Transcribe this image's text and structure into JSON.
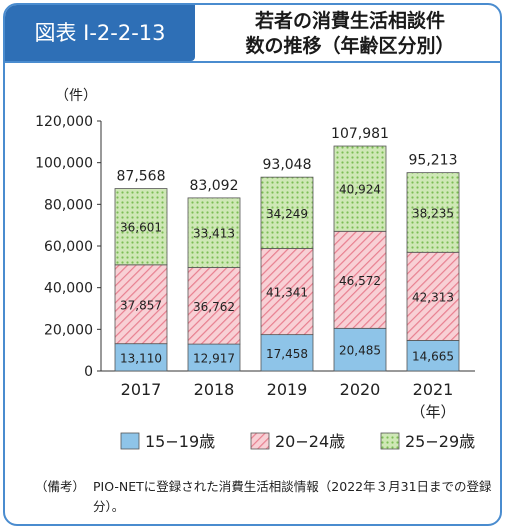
{
  "figure_label": "図表 I-2-2-13",
  "title_line1": "若者の消費生活相談件",
  "title_line2": "数の推移（年齢区分別）",
  "note_label": "（備考）",
  "note_text": "PIO-NETに登録された消費生活相談情報（2022年３月31日までの登録分）。",
  "colors": {
    "frame": "#4a8ccf",
    "header": "#2e6fb6",
    "s1": "#8ec4e8",
    "s2": "#f4b6bf",
    "s3": "#c5e3a8"
  },
  "chart_data": {
    "type": "bar",
    "stacked": true,
    "ylabel": "（件）",
    "xlabel": "（年）",
    "ylim": [
      0,
      120000
    ],
    "yticks": [
      "0",
      "20,000",
      "40,000",
      "60,000",
      "80,000",
      "100,000",
      "120,000"
    ],
    "categories": [
      "2017",
      "2018",
      "2019",
      "2020",
      "2021"
    ],
    "series": [
      {
        "name": "15−19歳",
        "values": [
          13110,
          12917,
          17458,
          20485,
          14665
        ],
        "labels": [
          "13,110",
          "12,917",
          "17,458",
          "20,485",
          "14,665"
        ]
      },
      {
        "name": "20−24歳",
        "values": [
          37857,
          36762,
          41341,
          46572,
          42313
        ],
        "labels": [
          "37,857",
          "36,762",
          "41,341",
          "46,572",
          "42,313"
        ]
      },
      {
        "name": "25−29歳",
        "values": [
          36601,
          33413,
          34249,
          40924,
          38235
        ],
        "labels": [
          "36,601",
          "33,413",
          "34,249",
          "40,924",
          "38,235"
        ]
      }
    ],
    "totals": [
      "87,568",
      "83,092",
      "93,048",
      "107,981",
      "95,213"
    ],
    "legend_position": "bottom"
  }
}
